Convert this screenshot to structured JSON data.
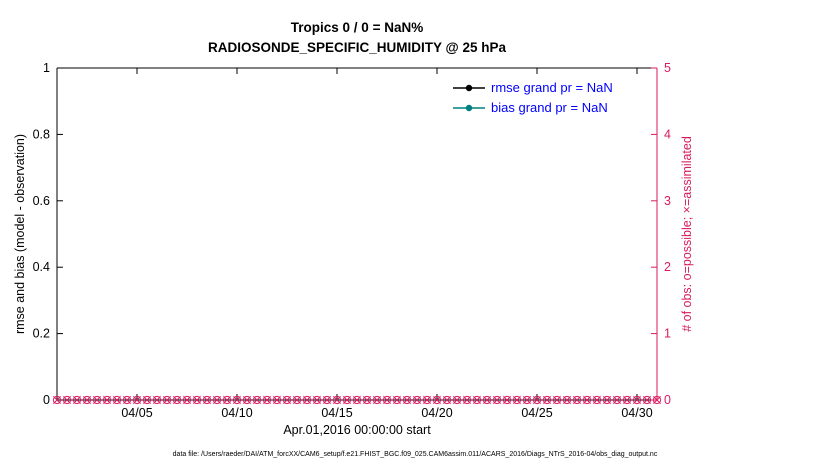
{
  "chart_data": {
    "type": "line",
    "title": "Tropics 0 / 0 = NaN%",
    "subtitle": "RADIOSONDE_SPECIFIC_HUMIDITY @ 25 hPa",
    "xlabel": "Apr.01,2016 00:00:00 start",
    "ylabel_left": "rmse and bias (model - observation)",
    "ylabel_right": "# of obs: o=possible; ×=assimilated",
    "caption": "data file: /Users/raeder/DAI/ATM_forcXX/CAM6_setup/f.e21.FHIST_BGC.f09_025.CAM6assim.011/ACARS_2016/Diags_NTrS_2016-04/obs_diag_output.nc",
    "grid": false,
    "xlim_days": [
      1,
      31
    ],
    "xticks_days": [
      5,
      10,
      15,
      20,
      25,
      30
    ],
    "xtick_labels": [
      "04/05",
      "04/10",
      "04/15",
      "04/20",
      "04/25",
      "04/30"
    ],
    "ylim_left": [
      0,
      1
    ],
    "yticks_left": [
      0,
      0.2,
      0.4,
      0.6,
      0.8,
      1
    ],
    "ytick_labels_left": [
      "0",
      "0.2",
      "0.4",
      "0.6",
      "0.8",
      "1"
    ],
    "ylim_right": [
      0,
      5
    ],
    "yticks_right": [
      0,
      1,
      2,
      3,
      4,
      5
    ],
    "ytick_labels_right": [
      "0",
      "1",
      "2",
      "3",
      "4",
      "5"
    ],
    "legend": {
      "position": "upper-right-inside",
      "entries": [
        {
          "name": "rmse",
          "label": "rmse grand pr = NaN",
          "color": "#000000",
          "marker": "filled-circle-on-line"
        },
        {
          "name": "bias",
          "label": "bias grand pr = NaN",
          "color": "#008080",
          "marker": "filled-circle-on-line"
        }
      ]
    },
    "series": [
      {
        "name": "rmse",
        "axis": "left",
        "summary": "grand pr = NaN",
        "points_plotted": 0
      },
      {
        "name": "bias",
        "axis": "left",
        "summary": "grand pr = NaN",
        "points_plotted": 0
      },
      {
        "name": "possible_obs",
        "axis": "right",
        "marker": "o",
        "value_all_bins": 0,
        "start_day": 1,
        "end_day": 31,
        "step_days": 0.5
      },
      {
        "name": "assimilated_obs",
        "axis": "right",
        "marker": "x",
        "value_all_bins": 0,
        "start_day": 1,
        "end_day": 31,
        "step_days": 0.5
      }
    ],
    "colors": {
      "axis": "#000000",
      "right_axis": "#D81B60",
      "obs_markers": "#D81B60",
      "rmse": "#000000",
      "bias": "#008080",
      "legend_text": "#0000FF",
      "background": "#FFFFFF"
    }
  }
}
